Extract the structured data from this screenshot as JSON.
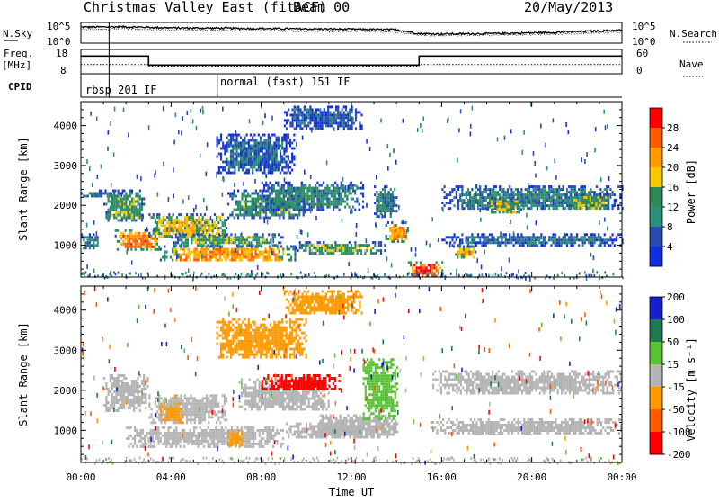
{
  "header": {
    "title": "Christmas Valley East (fitACF)",
    "beam": "Beam 00",
    "date": "20/May/2013"
  },
  "left_labels": {
    "nsky": "N.Sky",
    "freq": "Freq.",
    "freq_unit": "[MHz]",
    "cpid": "CPID"
  },
  "right_labels": {
    "nsearch": "N.Search",
    "nave": "Nave"
  },
  "sky_axis": {
    "ticks": [
      "10^5",
      "10^0"
    ]
  },
  "freq_axis": {
    "ticks": [
      "18",
      "8"
    ]
  },
  "nave_axis": {
    "ticks": [
      "60",
      "0"
    ]
  },
  "cpid": {
    "segments": [
      {
        "label": "rbsp 201 IF",
        "start_hour": 1.25
      },
      {
        "label": "normal (fast) 151 IF",
        "start_hour": 6.05
      }
    ]
  },
  "power_colorbar": {
    "label": "Power [dB]",
    "ticks": [
      "28",
      "24",
      "20",
      "16",
      "12",
      "8",
      "4"
    ],
    "colors": [
      "#ff0000",
      "#ff5a00",
      "#ff9a00",
      "#f5c800",
      "#2e8b57",
      "#2c8f78",
      "#2a4bb0",
      "#1030e0"
    ]
  },
  "velocity_colorbar": {
    "label": "Velocity [m s⁻¹]",
    "ticks": [
      "200",
      "100",
      "50",
      "15",
      "-15",
      "-50",
      "-100",
      "-200"
    ],
    "colors": [
      "#1520c8",
      "#1f7a4f",
      "#5ac236",
      "#b4b4b4",
      "#ff9900",
      "#ff5a00",
      "#ff0000"
    ]
  },
  "x_axis": {
    "label": "Time UT",
    "ticks": [
      "00:00",
      "04:00",
      "08:00",
      "12:00",
      "16:00",
      "20:00",
      "00:00"
    ]
  },
  "chart_data": [
    {
      "type": "line",
      "name": "noise_panel",
      "ylabel": "N.Sky",
      "x": [
        0,
        2,
        4,
        6,
        8,
        10,
        12,
        14,
        15,
        16,
        18,
        20,
        22,
        24
      ],
      "y_sky_log": [
        4.2,
        4.3,
        4.0,
        3.9,
        3.8,
        3.7,
        3.6,
        3.5,
        2.4,
        2.3,
        2.4,
        2.6,
        2.9,
        3.4
      ],
      "y_search_log": [
        3.6,
        3.7,
        3.4,
        3.3,
        3.2,
        3.1,
        3.0,
        2.9,
        2.0,
        1.9,
        2.0,
        2.1,
        2.4,
        2.9
      ],
      "ylim": [
        0,
        5
      ]
    },
    {
      "type": "line",
      "name": "freq_panel",
      "x": [
        0,
        3,
        3,
        15,
        15,
        24
      ],
      "freq_mhz": [
        15.5,
        15.5,
        11.5,
        11.5,
        15.5,
        15.5
      ],
      "nave": [
        22,
        22,
        18,
        18,
        22,
        22
      ],
      "ylim_freq": [
        8,
        18
      ],
      "ylim_nave": [
        0,
        60
      ]
    },
    {
      "type": "heatmap",
      "name": "power",
      "xlabel": "",
      "ylabel": "Slant Range [km]",
      "xlim": [
        0,
        24
      ],
      "ylim": [
        200,
        4600
      ],
      "y_ticks": [
        1000,
        2000,
        3000,
        4000
      ],
      "features": [
        {
          "t": [
            0.0,
            1.5
          ],
          "r": [
            2200,
            2400
          ],
          "level": 10
        },
        {
          "t": [
            0.0,
            0.8
          ],
          "r": [
            900,
            1300
          ],
          "level": 9
        },
        {
          "t": [
            1.0,
            2.8
          ],
          "r": [
            1600,
            2400
          ],
          "level": 13
        },
        {
          "t": [
            1.5,
            3.5
          ],
          "r": [
            900,
            1400
          ],
          "level": 24
        },
        {
          "t": [
            3.0,
            6.5
          ],
          "r": [
            1200,
            1800
          ],
          "level": 18
        },
        {
          "t": [
            6.5,
            10.0
          ],
          "r": [
            1700,
            2400
          ],
          "level": 12
        },
        {
          "t": [
            3.5,
            9.5
          ],
          "r": [
            600,
            1000
          ],
          "level": 22
        },
        {
          "t": [
            4.0,
            9.0
          ],
          "r": [
            1000,
            1300
          ],
          "level": 14
        },
        {
          "t": [
            9.5,
            13.5
          ],
          "r": [
            800,
            1100
          ],
          "level": 14
        },
        {
          "t": [
            8.0,
            12.5
          ],
          "r": [
            1900,
            2600
          ],
          "level": 11
        },
        {
          "t": [
            6.0,
            9.5
          ],
          "r": [
            2800,
            3800
          ],
          "level": 7
        },
        {
          "t": [
            9.0,
            12.5
          ],
          "r": [
            3900,
            4500
          ],
          "level": 6
        },
        {
          "t": [
            13.5,
            14.5
          ],
          "r": [
            1100,
            1600
          ],
          "level": 22
        },
        {
          "t": [
            13.0,
            14.0
          ],
          "r": [
            1700,
            2500
          ],
          "level": 10
        },
        {
          "t": [
            14.5,
            16.0
          ],
          "r": [
            200,
            600
          ],
          "level": 27
        },
        {
          "t": [
            16.5,
            17.5
          ],
          "r": [
            700,
            1000
          ],
          "level": 20
        },
        {
          "t": [
            16.0,
            24.0
          ],
          "r": [
            1000,
            1300
          ],
          "level": 8
        },
        {
          "t": [
            16.0,
            24.0
          ],
          "r": [
            1900,
            2500
          ],
          "level": 10
        },
        {
          "t": [
            18.0,
            19.5
          ],
          "r": [
            1800,
            2200
          ],
          "level": 16
        },
        {
          "t": [
            21.5,
            23.5
          ],
          "r": [
            1900,
            2300
          ],
          "level": 15
        }
      ]
    },
    {
      "type": "heatmap",
      "name": "velocity",
      "xlabel": "Time UT",
      "ylabel": "Slant Range [km]",
      "xlim": [
        0,
        24
      ],
      "ylim": [
        200,
        4600
      ],
      "y_ticks": [
        1000,
        2000,
        3000,
        4000
      ],
      "features": [
        {
          "t": [
            1.0,
            3.0
          ],
          "r": [
            1500,
            2400
          ],
          "v": 0
        },
        {
          "t": [
            3.0,
            6.5
          ],
          "r": [
            1200,
            1900
          ],
          "v": 0
        },
        {
          "t": [
            2.0,
            9.0
          ],
          "r": [
            600,
            1100
          ],
          "v": 0
        },
        {
          "t": [
            7.0,
            11.0
          ],
          "r": [
            1500,
            2300
          ],
          "v": 0
        },
        {
          "t": [
            9.0,
            14.0
          ],
          "r": [
            800,
            1200
          ],
          "v": 0
        },
        {
          "t": [
            10.5,
            14.0
          ],
          "r": [
            900,
            1400
          ],
          "v": 0
        },
        {
          "t": [
            3.5,
            4.5
          ],
          "r": [
            1200,
            1700
          ],
          "v": -40
        },
        {
          "t": [
            6.5,
            7.2
          ],
          "r": [
            600,
            1000
          ],
          "v": -40
        },
        {
          "t": [
            8.0,
            11.5
          ],
          "r": [
            2000,
            2400
          ],
          "v": -110
        },
        {
          "t": [
            12.5,
            14.0
          ],
          "r": [
            1300,
            2800
          ],
          "v": 30
        },
        {
          "t": [
            15.5,
            24.0
          ],
          "r": [
            1900,
            2500
          ],
          "v": 0
        },
        {
          "t": [
            15.5,
            24.0
          ],
          "r": [
            900,
            1300
          ],
          "v": 0
        },
        {
          "t": [
            6.0,
            10.0
          ],
          "r": [
            2800,
            3800
          ],
          "v": -30
        },
        {
          "t": [
            9.0,
            12.5
          ],
          "r": [
            3900,
            4500
          ],
          "v": -40
        }
      ]
    }
  ]
}
